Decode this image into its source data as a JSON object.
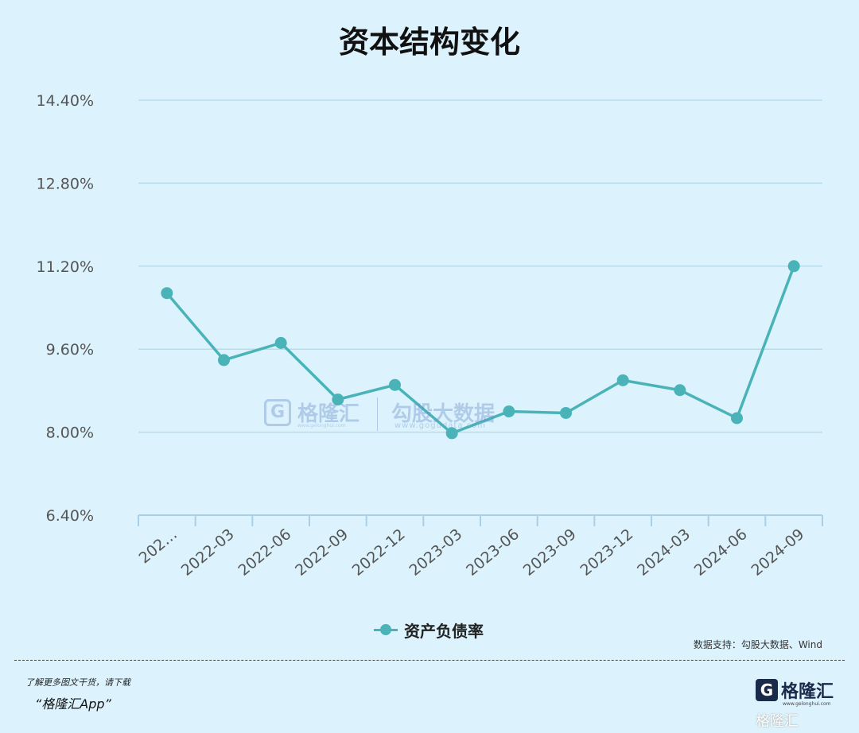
{
  "chart_data": {
    "type": "line",
    "title": "资本结构变化",
    "categories": [
      "202…",
      "2022-03",
      "2022-06",
      "2022-09",
      "2022-12",
      "2023-03",
      "2023-06",
      "2023-09",
      "2023-12",
      "2024-03",
      "2024-06",
      "2024-09"
    ],
    "series": [
      {
        "name": "资产负债率",
        "values": [
          10.68,
          9.39,
          9.72,
          8.63,
          8.91,
          7.98,
          8.4,
          8.37,
          9.0,
          8.81,
          8.27,
          11.2
        ]
      }
    ],
    "yticks": [
      "14.40%",
      "12.80%",
      "11.20%",
      "9.60%",
      "8.00%",
      "6.40%"
    ],
    "ylim": [
      6.4,
      14.4
    ],
    "grid": true,
    "legend_position": "bottom-center",
    "color": "#4ab3b8"
  },
  "source_note": "数据支持：勾股大数据、Wind",
  "footer": {
    "note": "了解更多图文干货，请下载",
    "app": "“格隆汇App”"
  },
  "brand": {
    "name": "格隆汇",
    "url": "www.gelonghui.com",
    "watermark": "格隆汇"
  },
  "watermark": {
    "name": "格隆汇",
    "tag": "勾股大数据",
    "url": "www.gogudata.com",
    "url2": "www.gelonghui.com"
  }
}
